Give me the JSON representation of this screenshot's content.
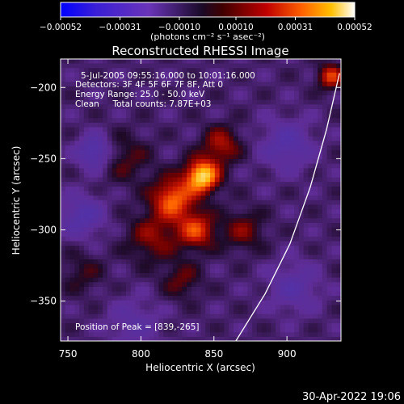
{
  "chart_data": {
    "type": "heatmap",
    "title": "Reconstructed RHESSI Image",
    "xlabel": "Heliocentric X (arcsec)",
    "ylabel": "Heliocentric Y (arcsec)",
    "xlim": [
      745,
      937
    ],
    "ylim": [
      -378,
      -180
    ],
    "x_ticks": [
      750,
      800,
      850,
      900
    ],
    "y_ticks": [
      -200,
      -250,
      -300,
      -350
    ],
    "colorbar": {
      "unit_label": "(photons cm⁻² s⁻¹ asec⁻²)",
      "range": [
        -0.00052,
        0.00052
      ],
      "tick_labels": [
        "-0.00052",
        "-0.00031",
        "-0.00010",
        "0.00010",
        "0.00031",
        "0.00052"
      ]
    },
    "annotations": [
      "5-Jul-2005 09:55:16.000 to 10:01:16.000",
      "Detectors: 3F 4F 5F 6F 7F 8F, Att 0",
      "Energy Range: 25.0 - 50.0 keV",
      "Clean     Total counts: 7.87E+03"
    ],
    "peak_label": "Position of Peak = [839,-265]",
    "peak_position": [
      839,
      -265
    ],
    "limb_curve": [
      [
        865,
        -378
      ],
      [
        885,
        -345
      ],
      [
        902,
        -310
      ],
      [
        916,
        -270
      ],
      [
        927,
        -230
      ],
      [
        936,
        -190
      ]
    ],
    "sources": [
      {
        "x": 842,
        "y": -262,
        "intensity": 0.00052,
        "sigma": 8
      },
      {
        "x": 822,
        "y": -278,
        "intensity": 0.00036,
        "sigma": 10
      },
      {
        "x": 838,
        "y": -300,
        "intensity": 0.0003,
        "sigma": 9
      },
      {
        "x": 808,
        "y": -305,
        "intensity": 0.00018,
        "sigma": 12
      },
      {
        "x": 855,
        "y": -240,
        "intensity": 0.00022,
        "sigma": 9
      },
      {
        "x": 870,
        "y": -300,
        "intensity": 0.00016,
        "sigma": 10
      },
      {
        "x": 790,
        "y": -250,
        "intensity": 0.00012,
        "sigma": 12
      },
      {
        "x": 828,
        "y": -335,
        "intensity": 0.00014,
        "sigma": 9
      },
      {
        "x": 930,
        "y": -192,
        "intensity": 0.0003,
        "sigma": 6
      },
      {
        "x": 760,
        "y": -330,
        "intensity": 0.0001,
        "sigma": 10
      },
      {
        "x": 768,
        "y": -245,
        "intensity": -0.00025,
        "sigma": 8
      },
      {
        "x": 900,
        "y": -240,
        "intensity": -0.00018,
        "sigma": 12
      },
      {
        "x": 905,
        "y": -340,
        "intensity": -0.00015,
        "sigma": 12
      },
      {
        "x": 760,
        "y": -290,
        "intensity": -0.0002,
        "sigma": 10
      },
      {
        "x": 795,
        "y": -365,
        "intensity": -0.00012,
        "sigma": 12
      }
    ]
  },
  "footer": {
    "timestamp": "30-Apr-2022 19:06"
  }
}
